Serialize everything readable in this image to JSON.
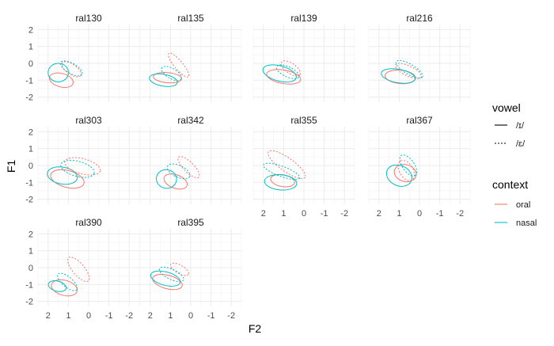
{
  "chart_data": {
    "type": "ellipse-facets",
    "xlabel": "F2",
    "ylabel": "F1",
    "x_reversed": true,
    "y_reversed": true,
    "xlim": [
      2.5,
      -2.5
    ],
    "ylim": [
      2.3,
      -2.3
    ],
    "xticks": [
      2,
      1,
      0,
      -1,
      -2
    ],
    "yticks": [
      -2,
      -1,
      0,
      1,
      2
    ],
    "grid": true,
    "legend_position": "right",
    "legend": {
      "vowel": {
        "title": "vowel",
        "entries": [
          {
            "label": "/ɪ/",
            "dash": "solid"
          },
          {
            "label": "/ɛ/",
            "dash": "dotted"
          }
        ]
      },
      "context": {
        "title": "context",
        "entries": [
          {
            "label": "oral",
            "color": "#F8766D"
          },
          {
            "label": "nasal",
            "color": "#00BFC4"
          }
        ]
      }
    },
    "panels": [
      {
        "name": "ral130",
        "ellipses": [
          {
            "vowel": "/ɪ/",
            "context": "oral",
            "cx": 1.35,
            "cy": -1.0,
            "rx": 0.6,
            "ry": 0.4,
            "angle": 15
          },
          {
            "vowel": "/ɪ/",
            "context": "nasal",
            "cx": 1.5,
            "cy": -0.55,
            "rx": 0.5,
            "ry": 0.55,
            "angle": 0
          },
          {
            "vowel": "/ɛ/",
            "context": "oral",
            "cx": 0.85,
            "cy": -0.35,
            "rx": 0.55,
            "ry": 0.3,
            "angle": 35
          },
          {
            "vowel": "/ɛ/",
            "context": "nasal",
            "cx": 0.85,
            "cy": -0.3,
            "rx": 0.6,
            "ry": 0.3,
            "angle": 30
          }
        ]
      },
      {
        "name": "ral135",
        "ellipses": [
          {
            "vowel": "/ɪ/",
            "context": "oral",
            "cx": 1.15,
            "cy": -0.85,
            "rx": 0.7,
            "ry": 0.3,
            "angle": 5
          },
          {
            "vowel": "/ɪ/",
            "context": "nasal",
            "cx": 1.35,
            "cy": -1.0,
            "rx": 0.7,
            "ry": 0.35,
            "angle": 10
          },
          {
            "vowel": "/ɛ/",
            "context": "oral",
            "cx": 0.6,
            "cy": -0.1,
            "rx": 0.75,
            "ry": 0.25,
            "angle": 50
          },
          {
            "vowel": "/ɛ/",
            "context": "nasal",
            "cx": 0.95,
            "cy": -0.6,
            "rx": 0.55,
            "ry": 0.3,
            "angle": 30
          }
        ]
      },
      {
        "name": "ral139",
        "ellipses": [
          {
            "vowel": "/ɪ/",
            "context": "oral",
            "cx": 1.0,
            "cy": -0.8,
            "rx": 0.85,
            "ry": 0.4,
            "angle": 10
          },
          {
            "vowel": "/ɪ/",
            "context": "nasal",
            "cx": 1.2,
            "cy": -0.6,
            "rx": 0.85,
            "ry": 0.45,
            "angle": 15
          },
          {
            "vowel": "/ɛ/",
            "context": "oral",
            "cx": 0.65,
            "cy": -0.3,
            "rx": 0.55,
            "ry": 0.3,
            "angle": 35
          },
          {
            "vowel": "/ɛ/",
            "context": "nasal",
            "cx": 0.8,
            "cy": -0.5,
            "rx": 0.6,
            "ry": 0.3,
            "angle": 25
          }
        ]
      },
      {
        "name": "ral216",
        "ellipses": [
          {
            "vowel": "/ɪ/",
            "context": "oral",
            "cx": 0.95,
            "cy": -0.8,
            "rx": 0.75,
            "ry": 0.4,
            "angle": 5
          },
          {
            "vowel": "/ɪ/",
            "context": "nasal",
            "cx": 1.05,
            "cy": -0.75,
            "rx": 0.85,
            "ry": 0.4,
            "angle": 10
          },
          {
            "vowel": "/ɛ/",
            "context": "oral",
            "cx": 0.55,
            "cy": -0.45,
            "rx": 0.7,
            "ry": 0.3,
            "angle": 25
          },
          {
            "vowel": "/ɛ/",
            "context": "nasal",
            "cx": 0.5,
            "cy": -0.35,
            "rx": 0.75,
            "ry": 0.3,
            "angle": 30
          }
        ]
      },
      {
        "name": "ral303",
        "ellipses": [
          {
            "vowel": "/ɪ/",
            "context": "oral",
            "cx": 1.05,
            "cy": -0.8,
            "rx": 0.85,
            "ry": 0.5,
            "angle": 15
          },
          {
            "vowel": "/ɪ/",
            "context": "nasal",
            "cx": 1.3,
            "cy": -0.6,
            "rx": 0.75,
            "ry": 0.5,
            "angle": 10
          },
          {
            "vowel": "/ɛ/",
            "context": "oral",
            "cx": 0.3,
            "cy": -0.05,
            "rx": 0.9,
            "ry": 0.45,
            "angle": 15
          },
          {
            "vowel": "/ɛ/",
            "context": "nasal",
            "cx": 0.55,
            "cy": -0.2,
            "rx": 0.85,
            "ry": 0.45,
            "angle": 15
          }
        ]
      },
      {
        "name": "ral342",
        "ellipses": [
          {
            "vowel": "/ɪ/",
            "context": "oral",
            "cx": 0.75,
            "cy": -0.95,
            "rx": 0.6,
            "ry": 0.4,
            "angle": 20
          },
          {
            "vowel": "/ɪ/",
            "context": "nasal",
            "cx": 1.2,
            "cy": -0.8,
            "rx": 0.5,
            "ry": 0.55,
            "angle": 10
          },
          {
            "vowel": "/ɛ/",
            "context": "oral",
            "cx": 0.1,
            "cy": -0.1,
            "rx": 0.7,
            "ry": 0.3,
            "angle": 45
          },
          {
            "vowel": "/ɛ/",
            "context": "nasal",
            "cx": 0.6,
            "cy": -0.35,
            "rx": 0.6,
            "ry": 0.35,
            "angle": 25
          }
        ]
      },
      {
        "name": "ral355",
        "ellipses": [
          {
            "vowel": "/ɪ/",
            "context": "oral",
            "cx": 1.05,
            "cy": -0.9,
            "rx": 0.6,
            "ry": 0.35,
            "angle": 10
          },
          {
            "vowel": "/ɪ/",
            "context": "nasal",
            "cx": 1.15,
            "cy": -1.0,
            "rx": 0.8,
            "ry": 0.45,
            "angle": 5
          },
          {
            "vowel": "/ɛ/",
            "context": "oral",
            "cx": 0.85,
            "cy": 0.05,
            "rx": 1.1,
            "ry": 0.4,
            "angle": 35
          },
          {
            "vowel": "/ɛ/",
            "context": "nasal",
            "cx": 1.1,
            "cy": -0.35,
            "rx": 0.95,
            "ry": 0.3,
            "angle": 20
          }
        ]
      },
      {
        "name": "ral367",
        "ellipses": [
          {
            "vowel": "/ɪ/",
            "context": "oral",
            "cx": 0.7,
            "cy": -0.45,
            "rx": 0.55,
            "ry": 0.5,
            "angle": 15
          },
          {
            "vowel": "/ɪ/",
            "context": "nasal",
            "cx": 1.0,
            "cy": -0.6,
            "rx": 0.65,
            "ry": 0.6,
            "angle": 25
          },
          {
            "vowel": "/ɛ/",
            "context": "oral",
            "cx": 0.65,
            "cy": -0.3,
            "rx": 0.55,
            "ry": 0.4,
            "angle": 60
          },
          {
            "vowel": "/ɛ/",
            "context": "nasal",
            "cx": 0.55,
            "cy": 0.0,
            "rx": 0.6,
            "ry": 0.35,
            "angle": 55
          }
        ]
      },
      {
        "name": "ral390",
        "ellipses": [
          {
            "vowel": "/ɪ/",
            "context": "oral",
            "cx": 1.2,
            "cy": -1.2,
            "rx": 0.65,
            "ry": 0.45,
            "angle": 15
          },
          {
            "vowel": "/ɪ/",
            "context": "nasal",
            "cx": 1.55,
            "cy": -1.1,
            "rx": 0.45,
            "ry": 0.3,
            "angle": 15
          },
          {
            "vowel": "/ɛ/",
            "context": "oral",
            "cx": 0.5,
            "cy": -0.1,
            "rx": 0.75,
            "ry": 0.35,
            "angle": 50
          },
          {
            "vowel": "/ɛ/",
            "context": "nasal",
            "cx": 1.05,
            "cy": -0.85,
            "rx": 0.6,
            "ry": 0.3,
            "angle": 40
          }
        ]
      },
      {
        "name": "ral395",
        "ellipses": [
          {
            "vowel": "/ɪ/",
            "context": "oral",
            "cx": 1.15,
            "cy": -0.85,
            "rx": 0.75,
            "ry": 0.4,
            "angle": 15
          },
          {
            "vowel": "/ɪ/",
            "context": "nasal",
            "cx": 1.25,
            "cy": -0.65,
            "rx": 0.75,
            "ry": 0.4,
            "angle": 15
          },
          {
            "vowel": "/ɛ/",
            "context": "oral",
            "cx": 0.55,
            "cy": -0.1,
            "rx": 0.5,
            "ry": 0.25,
            "angle": 30
          },
          {
            "vowel": "/ɛ/",
            "context": "nasal",
            "cx": 0.95,
            "cy": -0.4,
            "rx": 0.65,
            "ry": 0.3,
            "angle": 25
          }
        ]
      }
    ]
  }
}
